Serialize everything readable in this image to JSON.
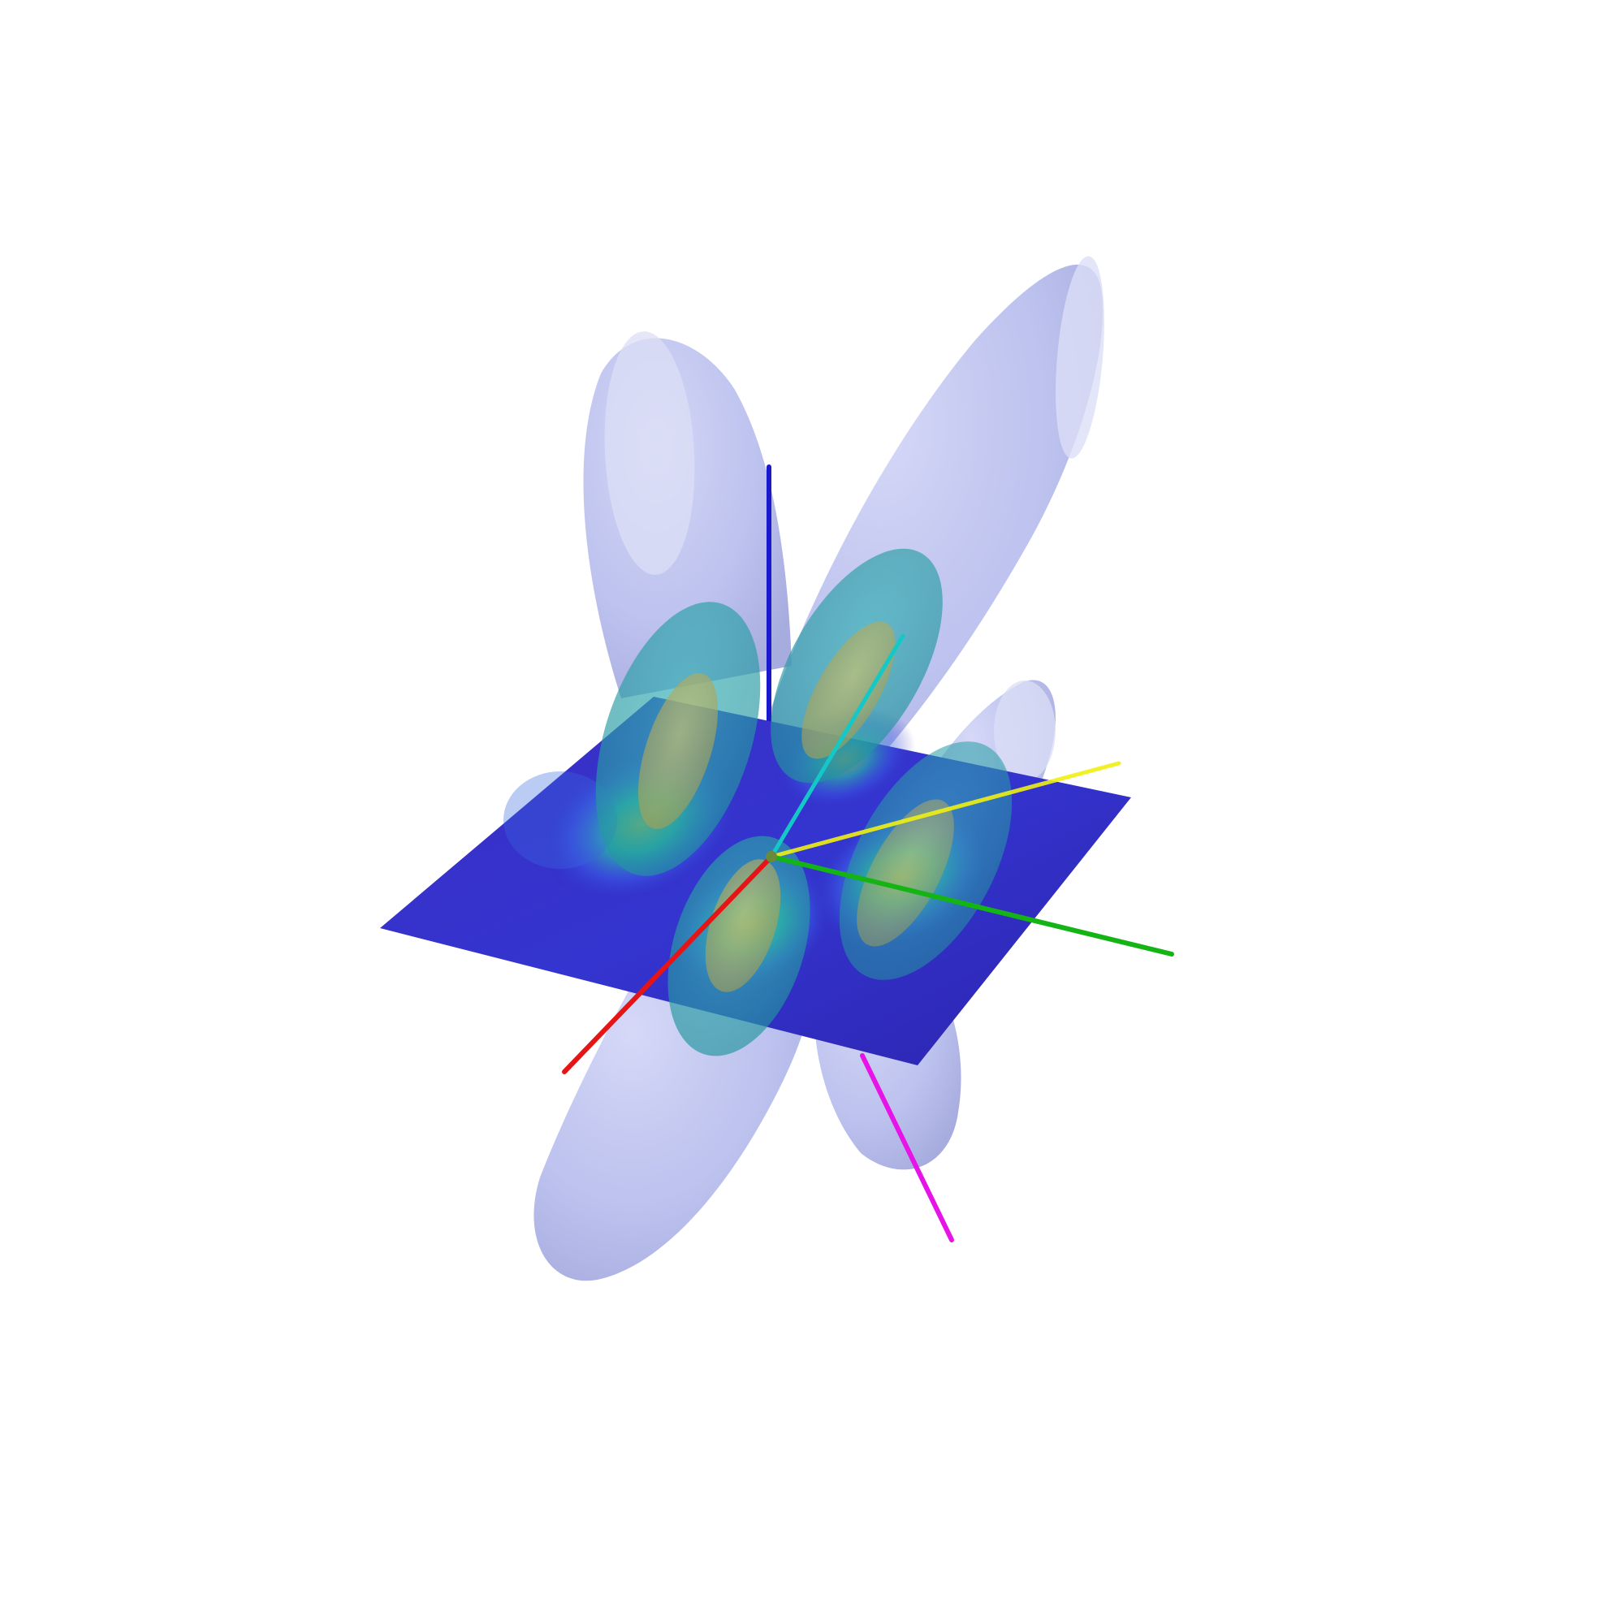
{
  "scene": {
    "background": "#ffffff",
    "axes": [
      {
        "name": "blue-axis",
        "color": "#1a1acc"
      },
      {
        "name": "cyan-axis",
        "color": "#14c8c8"
      },
      {
        "name": "yellow-axis",
        "color": "#f0f014"
      },
      {
        "name": "green-axis",
        "color": "#14b414"
      },
      {
        "name": "red-axis",
        "color": "#e61414"
      },
      {
        "name": "magenta-axis",
        "color": "#e614e6"
      }
    ],
    "colors": {
      "outer_isosurface": "#8c96e6",
      "middle_isosurface": "#2aa6ad",
      "inner_isosurface": "#b8b45a",
      "slice_low": "#2e2ab8",
      "slice_mid": "#3a5ae6",
      "slice_high": "#28c8a0",
      "slice_peak": "#b4c83c"
    }
  }
}
